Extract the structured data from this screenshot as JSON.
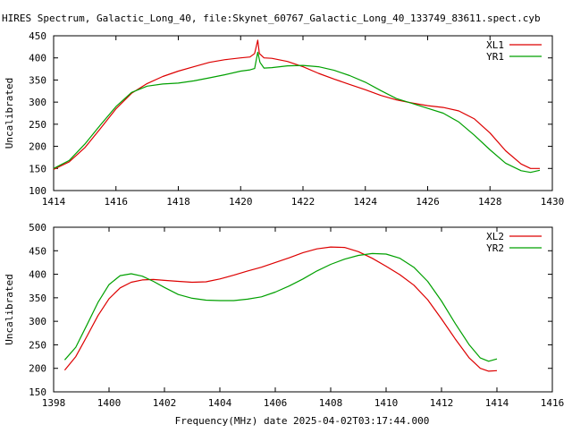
{
  "title": "HIRES Spectrum, Galactic_Long_40, file:Skynet_60767_Galactic_Long_40_133749_83611.spect.cyb",
  "xlabel": "Frequency(MHz) date 2025-04-02T03:17:44.000",
  "colors": {
    "red": "#dd0000",
    "green": "#00a000",
    "axis": "#000000"
  },
  "chart_data": [
    {
      "type": "line",
      "ylabel": "Uncalibrated",
      "xlim": [
        1414,
        1430
      ],
      "ylim": [
        100,
        450
      ],
      "xticks": [
        "1414",
        "1416",
        "1418",
        "1420",
        "1422",
        "1424",
        "1426",
        "1428",
        "1430"
      ],
      "yticks": [
        "100",
        "150",
        "200",
        "250",
        "300",
        "350",
        "400",
        "450"
      ],
      "legend_position": "top-right",
      "series": [
        {
          "name": "XL1",
          "color": "#dd0000",
          "x": [
            1414.0,
            1414.5,
            1415.0,
            1415.5,
            1416.0,
            1416.5,
            1417.0,
            1417.5,
            1418.0,
            1418.5,
            1419.0,
            1419.5,
            1420.0,
            1420.3,
            1420.45,
            1420.55,
            1420.6,
            1420.75,
            1421.0,
            1421.5,
            1422.0,
            1422.5,
            1423.0,
            1423.5,
            1424.0,
            1424.5,
            1425.0,
            1425.5,
            1426.0,
            1426.5,
            1427.0,
            1427.5,
            1428.0,
            1428.5,
            1429.0,
            1429.3,
            1429.6
          ],
          "y": [
            148,
            165,
            197,
            240,
            285,
            320,
            342,
            358,
            370,
            380,
            390,
            396,
            400,
            402,
            410,
            440,
            410,
            400,
            399,
            392,
            380,
            365,
            352,
            340,
            328,
            315,
            305,
            298,
            292,
            288,
            280,
            262,
            230,
            190,
            160,
            150,
            150
          ]
        },
        {
          "name": "YR1",
          "color": "#00a000",
          "x": [
            1414.0,
            1414.5,
            1415.0,
            1415.5,
            1416.0,
            1416.5,
            1417.0,
            1417.5,
            1418.0,
            1418.5,
            1419.0,
            1419.5,
            1420.0,
            1420.3,
            1420.45,
            1420.55,
            1420.62,
            1420.75,
            1421.0,
            1421.5,
            1422.0,
            1422.5,
            1423.0,
            1423.5,
            1424.0,
            1424.5,
            1425.0,
            1425.5,
            1426.0,
            1426.5,
            1427.0,
            1427.5,
            1428.0,
            1428.5,
            1429.0,
            1429.3,
            1429.6
          ],
          "y": [
            150,
            168,
            205,
            248,
            290,
            322,
            336,
            341,
            343,
            348,
            355,
            362,
            370,
            373,
            376,
            413,
            390,
            377,
            378,
            382,
            383,
            380,
            372,
            360,
            345,
            326,
            308,
            297,
            286,
            275,
            255,
            225,
            192,
            162,
            145,
            141,
            146
          ]
        }
      ]
    },
    {
      "type": "line",
      "ylabel": "Uncalibrated",
      "xlim": [
        1398,
        1416
      ],
      "ylim": [
        150,
        500
      ],
      "xticks": [
        "1398",
        "1400",
        "1402",
        "1404",
        "1406",
        "1408",
        "1410",
        "1412",
        "1414",
        "1416"
      ],
      "yticks": [
        "150",
        "200",
        "250",
        "300",
        "350",
        "400",
        "450",
        "500"
      ],
      "legend_position": "top-right",
      "series": [
        {
          "name": "XL2",
          "color": "#dd0000",
          "x": [
            1398.4,
            1398.8,
            1399.2,
            1399.6,
            1400.0,
            1400.4,
            1400.8,
            1401.2,
            1401.6,
            1402.0,
            1402.5,
            1403.0,
            1403.5,
            1404.0,
            1404.5,
            1405.0,
            1405.5,
            1406.0,
            1406.5,
            1407.0,
            1407.5,
            1408.0,
            1408.5,
            1409.0,
            1409.5,
            1410.0,
            1410.5,
            1411.0,
            1411.5,
            1412.0,
            1412.5,
            1413.0,
            1413.4,
            1413.7,
            1414.0
          ],
          "y": [
            196,
            225,
            268,
            312,
            348,
            371,
            383,
            388,
            389,
            387,
            385,
            383,
            384,
            390,
            398,
            407,
            415,
            425,
            435,
            446,
            454,
            458,
            457,
            448,
            434,
            417,
            399,
            377,
            346,
            305,
            262,
            222,
            200,
            194,
            195
          ]
        },
        {
          "name": "YR2",
          "color": "#00a000",
          "x": [
            1398.4,
            1398.8,
            1399.2,
            1399.6,
            1400.0,
            1400.4,
            1400.8,
            1401.2,
            1401.6,
            1402.0,
            1402.5,
            1403.0,
            1403.5,
            1404.0,
            1404.5,
            1405.0,
            1405.5,
            1406.0,
            1406.5,
            1407.0,
            1407.5,
            1408.0,
            1408.5,
            1409.0,
            1409.5,
            1410.0,
            1410.5,
            1411.0,
            1411.5,
            1412.0,
            1412.5,
            1413.0,
            1413.4,
            1413.7,
            1414.0
          ],
          "y": [
            218,
            245,
            292,
            340,
            378,
            397,
            401,
            396,
            385,
            372,
            357,
            349,
            345,
            344,
            344,
            347,
            352,
            362,
            375,
            390,
            407,
            421,
            432,
            440,
            444,
            443,
            434,
            415,
            385,
            343,
            295,
            250,
            222,
            215,
            220
          ]
        }
      ]
    }
  ]
}
